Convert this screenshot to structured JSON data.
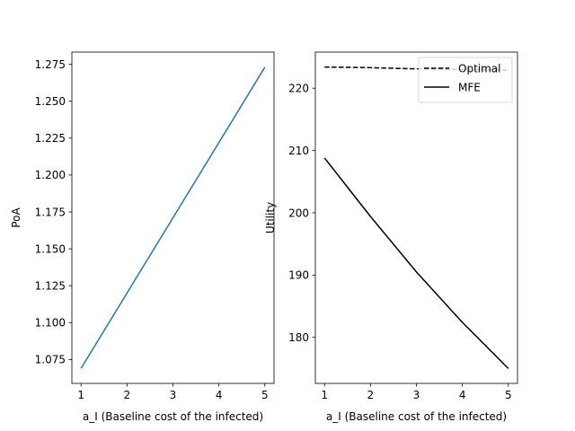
{
  "chart_data": [
    {
      "type": "line",
      "xlabel": "a_I (Baseline cost of the infected)",
      "ylabel": "PoA",
      "xlim": [
        0.8,
        5.2
      ],
      "ylim": [
        1.0588,
        1.2833
      ],
      "x_ticks": [
        1,
        2,
        3,
        4,
        5
      ],
      "y_ticks": [
        1.075,
        1.1,
        1.125,
        1.15,
        1.175,
        1.2,
        1.225,
        1.25,
        1.275
      ],
      "grid": false,
      "legend": null,
      "series": [
        {
          "color": "#1f77b4",
          "style": "solid",
          "x": [
            1,
            2,
            3,
            4,
            5
          ],
          "y": [
            1.069,
            1.12,
            1.171,
            1.222,
            1.273
          ]
        }
      ]
    },
    {
      "type": "line",
      "xlabel": "a_I (Baseline cost of the infected)",
      "ylabel": "Utility",
      "xlim": [
        0.8,
        5.2
      ],
      "ylim": [
        172.6,
        225.8
      ],
      "x_ticks": [
        1,
        2,
        3,
        4,
        5
      ],
      "y_ticks": [
        180,
        190,
        200,
        210,
        220
      ],
      "grid": false,
      "legend": "top-right",
      "series": [
        {
          "name": "Optimal",
          "color": "#000000",
          "style": "dashed",
          "x": [
            1,
            2,
            3,
            4,
            5
          ],
          "y": [
            223.4,
            223.3,
            223.1,
            223.0,
            222.9
          ]
        },
        {
          "name": "MFE",
          "color": "#000000",
          "style": "solid",
          "x": [
            1,
            2,
            3,
            4,
            5
          ],
          "y": [
            208.8,
            199.4,
            190.5,
            182.4,
            175.0
          ]
        }
      ]
    }
  ]
}
